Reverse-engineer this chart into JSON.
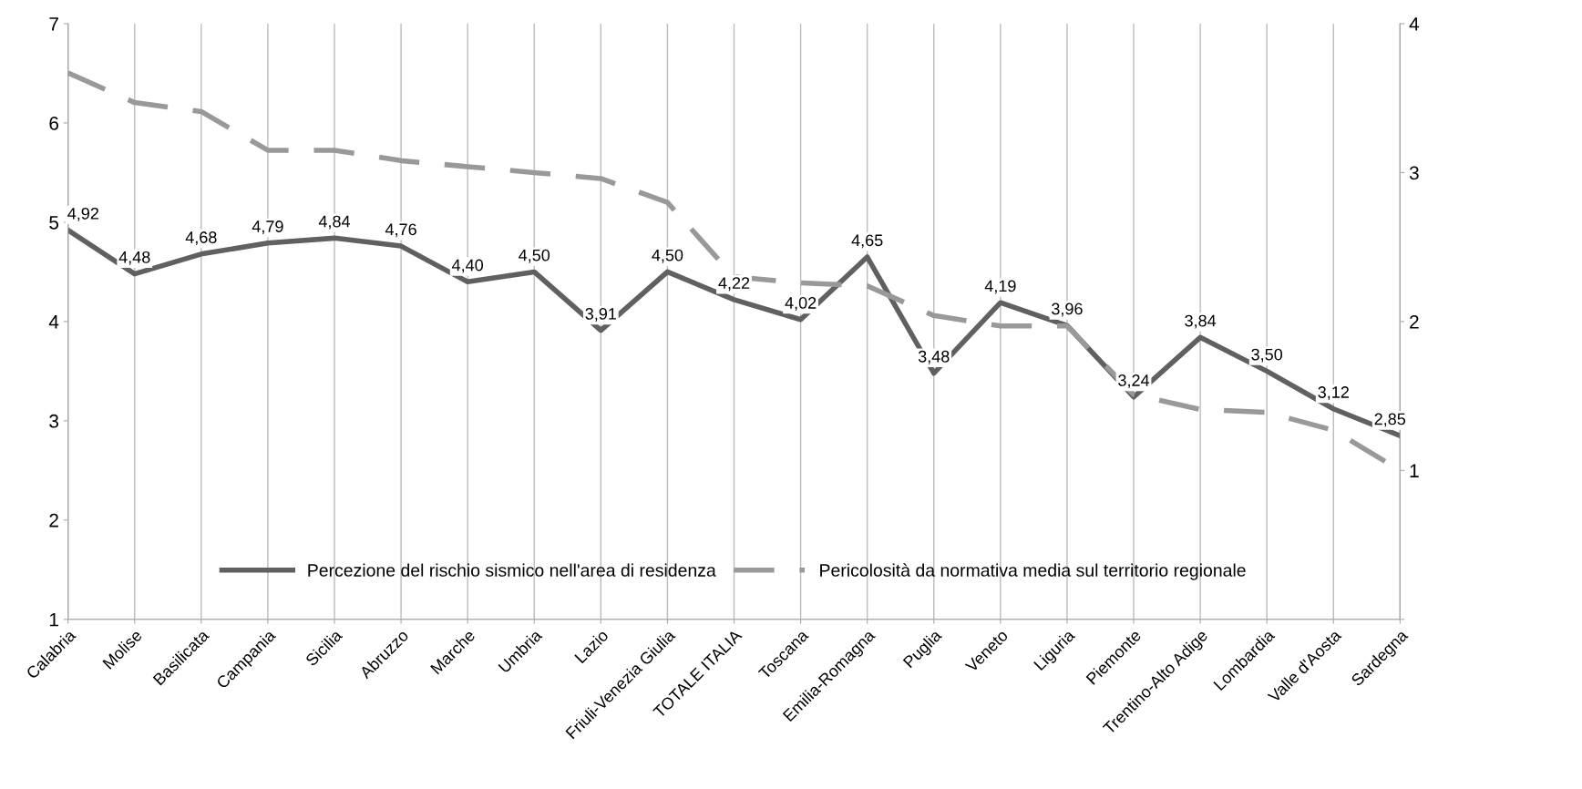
{
  "chart_data": {
    "type": "line",
    "categories": [
      "Calabria",
      "Molise",
      "Basilicata",
      "Campania",
      "Sicilia",
      "Abruzzo",
      "Marche",
      "Umbria",
      "Lazio",
      "Friuli-Venezia Giulia",
      "TOTALE ITALIA",
      "Toscana",
      "Emilia-Romagna",
      "Puglia",
      "Veneto",
      "Liguria",
      "Piemonte",
      "Trentino-Alto Adige",
      "Lombardia",
      "Valle d'Aosta",
      "Sardegna"
    ],
    "series": [
      {
        "name": "Percezione del rischio sismico nell'area di residenza",
        "color": "#606060",
        "line_style": "solid",
        "values": [
          4.92,
          4.48,
          4.68,
          4.79,
          4.84,
          4.76,
          4.4,
          4.5,
          3.91,
          4.5,
          4.22,
          4.02,
          4.65,
          3.48,
          4.19,
          3.96,
          3.24,
          3.84,
          3.5,
          3.12,
          2.85
        ],
        "value_labels": [
          "4,92",
          "4,48",
          "4,68",
          "4,79",
          "4,84",
          "4,76",
          "4,40",
          "4,50",
          "3,91",
          "4,50",
          "4,22",
          "4,02",
          "4,65",
          "3,48",
          "4,19",
          "3,96",
          "3,24",
          "3,84",
          "3,50",
          "3,12",
          "2,85"
        ]
      },
      {
        "name": "Pericolosità da normativa media sul territorio regionale",
        "color": "#999999",
        "line_style": "dashed",
        "axis": "y2",
        "values": [
          3.67,
          3.47,
          3.41,
          3.15,
          3.15,
          3.08,
          3.04,
          3.0,
          2.96,
          2.8,
          2.3,
          2.26,
          2.24,
          2.04,
          1.97,
          1.97,
          1.51,
          1.41,
          1.39,
          1.27,
          1.0
        ]
      }
    ],
    "ylim": [
      1,
      7
    ],
    "yticks": [
      1,
      2,
      3,
      4,
      5,
      6,
      7
    ],
    "y2lim": [
      0,
      4
    ],
    "y2ticks": [
      {
        "value": 0,
        "label": null
      },
      1,
      2,
      3,
      4
    ],
    "grid": "x",
    "legend": "bottom",
    "marker": "none"
  }
}
